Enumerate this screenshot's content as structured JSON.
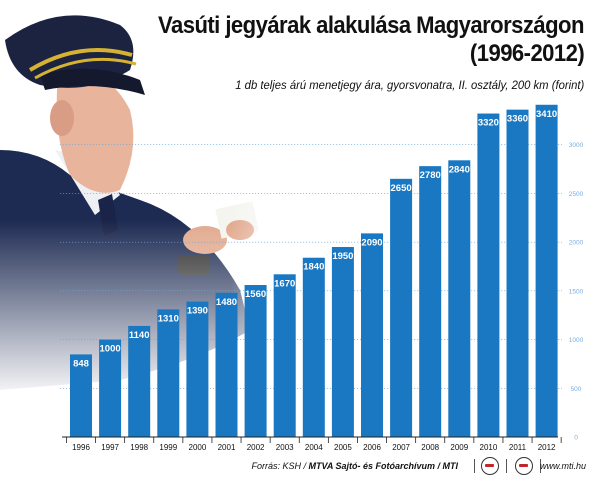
{
  "title_line1": "Vasúti jegyárak alakulása Magyarországon",
  "title_line2": "(1996-2012)",
  "subtitle": "1 db teljes árú menetjegy ára, gyorsvonatra, II. osztály, 200 km (forint)",
  "footer": {
    "source_prefix": "Forrás: KSH / ",
    "source_org": "MTVA Sajtó- és Fotóarchívum / MTI",
    "website": "www.mti.hu"
  },
  "colors": {
    "bar": "#1a78c2",
    "bar_label": "#ffffff",
    "grid": "#6aa8d8",
    "axis_ticks": "#7aaee0"
  },
  "chart_data": {
    "type": "bar",
    "categories": [
      "1996",
      "1997",
      "1998",
      "1999",
      "2000",
      "2001",
      "2002",
      "2003",
      "2004",
      "2005",
      "2006",
      "2007",
      "2008",
      "2009",
      "2010",
      "2011",
      "2012"
    ],
    "values": [
      848,
      1000,
      1140,
      1310,
      1390,
      1480,
      1560,
      1670,
      1840,
      1950,
      2090,
      2650,
      2780,
      2840,
      3320,
      3360,
      3410
    ],
    "yticks": [
      0,
      500,
      1000,
      1500,
      2000,
      2500,
      3000
    ],
    "ylim": [
      0,
      3500
    ],
    "grid": true,
    "data_labels": true,
    "y_axis_side": "right"
  }
}
